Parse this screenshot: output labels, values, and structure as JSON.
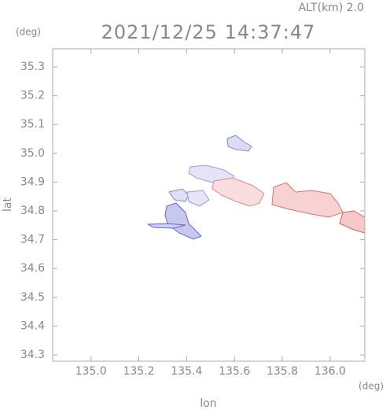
{
  "chart_data": {
    "type": "map",
    "title": "2021/12/25 14:37:47",
    "subtitle": "ALT(km)  2.0",
    "x_label": "lon",
    "x_unit": "(deg)",
    "y_label": "lat",
    "y_unit": "(deg)",
    "xlim": [
      134.84,
      136.145
    ],
    "ylim": [
      34.278,
      35.363
    ],
    "xticks": [
      {
        "value": 135,
        "label": "135.0"
      },
      135.2,
      135.4,
      135.6,
      135.8,
      {
        "value": 136,
        "label": "136.0"
      }
    ],
    "yticks": [
      34.3,
      34.4,
      34.5,
      34.6,
      34.7,
      34.8,
      34.9,
      {
        "value": 35,
        "label": "35.0"
      },
      35.1,
      35.2,
      35.3
    ]
  }
}
